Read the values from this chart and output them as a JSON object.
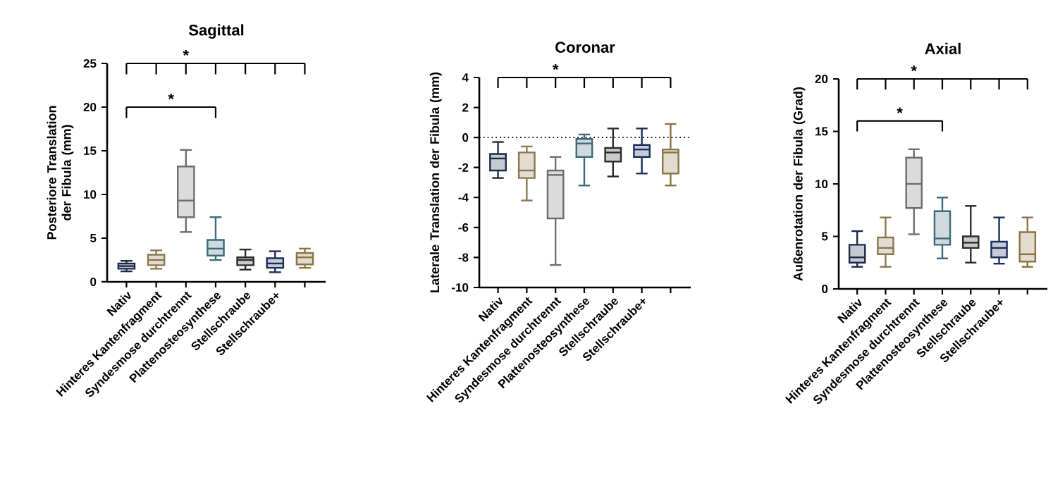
{
  "chart_data": [
    {
      "type": "box",
      "title": "Sagittal",
      "ylabel": "Posteriore Translation der Fibula (mm)",
      "categories": [
        "Nativ",
        "Hinteres Kantenfragment",
        "Syndesmose durchtrennt",
        "Plattenosteosynthese",
        "Stellschraube",
        "Stellschraube+",
        null
      ],
      "colors": [
        "#1c2b4a",
        "#8c7650",
        "#6e6e6e",
        "#3d6b7a",
        "#2b2b2b",
        "#1a2e5c",
        "#8c7344"
      ],
      "boxes": [
        {
          "low": 1.2,
          "q1": 1.5,
          "median": 1.8,
          "q3": 2.1,
          "high": 2.4
        },
        {
          "low": 1.5,
          "q1": 1.9,
          "median": 2.5,
          "q3": 3.1,
          "high": 3.6
        },
        {
          "low": 5.7,
          "q1": 7.4,
          "median": 9.3,
          "q3": 13.2,
          "high": 15.1
        },
        {
          "low": 2.5,
          "q1": 3.0,
          "median": 3.8,
          "q3": 4.8,
          "high": 7.4
        },
        {
          "low": 1.4,
          "q1": 1.9,
          "median": 2.5,
          "q3": 2.8,
          "high": 3.7
        },
        {
          "low": 1.1,
          "q1": 1.6,
          "median": 2.1,
          "q3": 2.7,
          "high": 3.5
        },
        {
          "low": 1.6,
          "q1": 2.0,
          "median": 2.8,
          "q3": 3.3,
          "high": 3.8
        }
      ],
      "ylim": [
        0,
        25
      ],
      "yticks": [
        0,
        5,
        10,
        15,
        20,
        25
      ],
      "annotations": [
        "*",
        "*"
      ]
    },
    {
      "type": "box",
      "title": "Coronar",
      "ylabel": "Laterale Translation der Fibula (mm)",
      "categories": [
        "Nativ",
        "Hinteres Kantenfragment",
        "Syndesmose durchtrennt",
        "Plattenosteosynthese",
        "Stellschraube",
        "Stellschraube+",
        null
      ],
      "colors": [
        "#1c2b4a",
        "#8c7650",
        "#6e6e6e",
        "#3d6b7a",
        "#2b2b2b",
        "#1a2e5c",
        "#8c7344"
      ],
      "boxes": [
        {
          "low": -2.7,
          "q1": -2.2,
          "median": -1.4,
          "q3": -1.1,
          "high": -0.3
        },
        {
          "low": -4.2,
          "q1": -2.7,
          "median": -2.2,
          "q3": -1.0,
          "high": -0.6
        },
        {
          "low": -8.5,
          "q1": -5.4,
          "median": -2.5,
          "q3": -2.2,
          "high": -1.3
        },
        {
          "low": -3.2,
          "q1": -1.3,
          "median": -0.4,
          "q3": -0.1,
          "high": 0.2
        },
        {
          "low": -2.6,
          "q1": -1.6,
          "median": -1.0,
          "q3": -0.7,
          "high": 0.6
        },
        {
          "low": -2.4,
          "q1": -1.3,
          "median": -0.8,
          "q3": -0.5,
          "high": 0.6
        },
        {
          "low": -3.2,
          "q1": -2.4,
          "median": -1.0,
          "q3": -0.8,
          "high": 0.9
        }
      ],
      "ylim": [
        -10,
        4
      ],
      "yticks": [
        -10,
        -8,
        -6,
        -4,
        -2,
        0,
        2,
        4
      ],
      "ref_lines": [
        {
          "axis": "y",
          "value": 0,
          "line_style": "dotted"
        }
      ],
      "annotations": [
        "*"
      ]
    },
    {
      "type": "box",
      "title": "Axial",
      "ylabel": "Außenrotation der Fibula (Grad)",
      "categories": [
        "Nativ",
        "Hinteres Kantenfragment",
        "Syndesmose durchtrennt",
        "Plattenosteosynthese",
        "Stellschraube",
        "Stellschraube+",
        null
      ],
      "colors": [
        "#1c2b4a",
        "#8c7650",
        "#6e6e6e",
        "#3d6b7a",
        "#2b2b2b",
        "#1a2e5c",
        "#8c7344"
      ],
      "boxes": [
        {
          "low": 2.1,
          "q1": 2.5,
          "median": 3.0,
          "q3": 4.2,
          "high": 5.5
        },
        {
          "low": 2.1,
          "q1": 3.3,
          "median": 3.9,
          "q3": 4.9,
          "high": 6.8
        },
        {
          "low": 5.2,
          "q1": 7.7,
          "median": 10.0,
          "q3": 12.5,
          "high": 13.3
        },
        {
          "low": 2.9,
          "q1": 4.2,
          "median": 4.8,
          "q3": 7.4,
          "high": 8.7
        },
        {
          "low": 2.5,
          "q1": 3.9,
          "median": 4.4,
          "q3": 5.0,
          "high": 7.9
        },
        {
          "low": 2.4,
          "q1": 3.0,
          "median": 3.9,
          "q3": 4.5,
          "high": 6.8
        },
        {
          "low": 2.1,
          "q1": 2.6,
          "median": 3.3,
          "q3": 5.4,
          "high": 6.8
        }
      ],
      "ylim": [
        0,
        20
      ],
      "yticks": [
        0,
        5,
        10,
        15,
        20
      ],
      "annotations": [
        "*",
        "*"
      ]
    }
  ]
}
